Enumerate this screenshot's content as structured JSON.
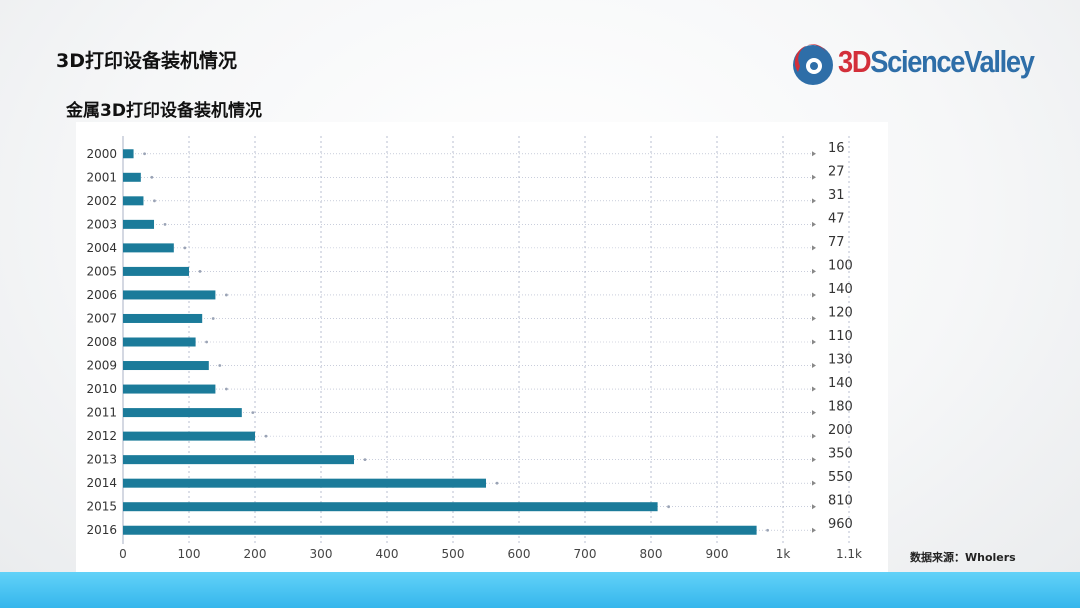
{
  "slide": {
    "title": "3D打印设备装机情况",
    "chart_heading": "金属3D打印设备装机情况",
    "source": "数据来源：Wholers",
    "logo": {
      "part_a": "3D",
      "part_b": "ScienceValley"
    }
  },
  "colors": {
    "bar": "#1b7b9a",
    "grid": "#a9b0c6",
    "bottom_bar": "#44bff0",
    "logo_red": "#d32f3a",
    "logo_blue": "#2e6ea8"
  },
  "chart_data": {
    "type": "bar",
    "orientation": "horizontal",
    "categories": [
      "2000",
      "2001",
      "2002",
      "2003",
      "2004",
      "2005",
      "2006",
      "2007",
      "2008",
      "2009",
      "2010",
      "2011",
      "2012",
      "2013",
      "2014",
      "2015",
      "2016"
    ],
    "values": [
      16,
      27,
      31,
      47,
      77,
      100,
      140,
      120,
      110,
      130,
      140,
      180,
      200,
      350,
      550,
      810,
      960
    ],
    "value_labels": [
      "16",
      "27",
      "31",
      "47",
      "77",
      "100",
      "140",
      "120",
      "110",
      "130",
      "140",
      "180",
      "200",
      "350",
      "550",
      "810",
      "960"
    ],
    "xlim": [
      0,
      1100
    ],
    "x_ticks": [
      0,
      100,
      200,
      300,
      400,
      500,
      600,
      700,
      800,
      900,
      1000,
      1100
    ],
    "x_tick_labels": [
      "0",
      "100",
      "200",
      "300",
      "400",
      "500",
      "600",
      "700",
      "800",
      "900",
      "1k",
      "1.1k"
    ],
    "grid": true,
    "title": "金属3D打印设备装机情况"
  }
}
